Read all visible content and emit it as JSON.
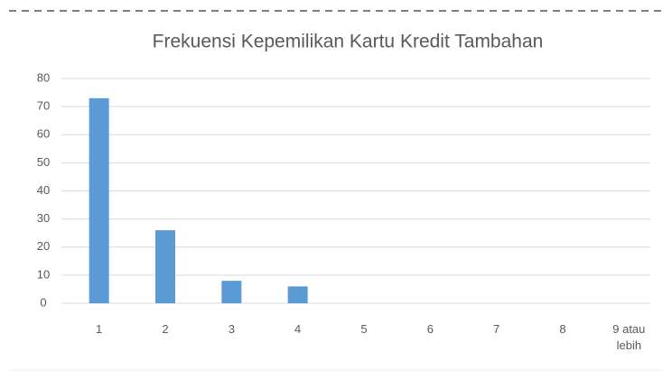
{
  "chart_data": {
    "type": "bar",
    "title": "Frekuensi Kepemilikan Kartu Kredit Tambahan",
    "categories": [
      "1",
      "2",
      "3",
      "4",
      "5",
      "6",
      "7",
      "8",
      "9 atau lebih"
    ],
    "values": [
      73,
      26,
      8,
      6,
      0,
      0,
      0,
      0,
      0
    ],
    "color": "#5b9bd5",
    "ylim": [
      0,
      80
    ],
    "yticks": [
      0,
      10,
      20,
      30,
      40,
      50,
      60,
      70,
      80
    ],
    "grid": true
  }
}
